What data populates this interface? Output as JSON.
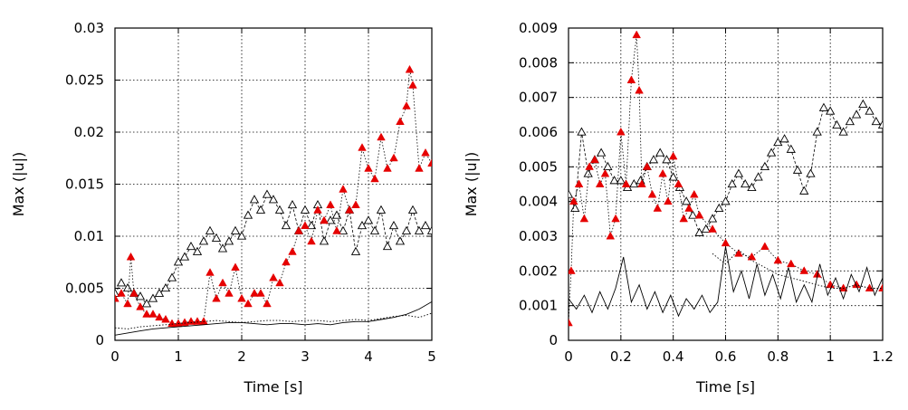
{
  "chart_data": [
    {
      "type": "line",
      "xlabel": "Time [s]",
      "ylabel": "Max (|u|)",
      "xlim": [
        0,
        5
      ],
      "ylim": [
        0,
        0.03
      ],
      "x_ticks": [
        0,
        1,
        2,
        3,
        4,
        5
      ],
      "x_tick_labels": [
        "0",
        "1",
        "2",
        "3",
        "4",
        "5"
      ],
      "y_ticks": [
        0,
        0.005,
        0.01,
        0.015,
        0.02,
        0.025,
        0.03
      ],
      "y_tick_labels": [
        "0",
        "0.005",
        "0.01",
        "0.015",
        "0.02",
        "0.025",
        "0.03"
      ],
      "grid": true,
      "series": [
        {
          "style": "open-triangle-dashed",
          "color": "#000000",
          "x": [
            0,
            0.1,
            0.2,
            0.3,
            0.4,
            0.5,
            0.6,
            0.7,
            0.8,
            0.9,
            1.0,
            1.1,
            1.2,
            1.3,
            1.4,
            1.5,
            1.6,
            1.7,
            1.8,
            1.9,
            2.0,
            2.1,
            2.2,
            2.3,
            2.4,
            2.5,
            2.6,
            2.7,
            2.8,
            2.9,
            3.0,
            3.1,
            3.2,
            3.3,
            3.4,
            3.5,
            3.6,
            3.7,
            3.8,
            3.9,
            4.0,
            4.1,
            4.2,
            4.3,
            4.4,
            4.5,
            4.6,
            4.7,
            4.8,
            4.9,
            5.0
          ],
          "y": [
            0.0045,
            0.0055,
            0.005,
            0.0045,
            0.0042,
            0.0035,
            0.004,
            0.0045,
            0.005,
            0.006,
            0.0075,
            0.008,
            0.009,
            0.0085,
            0.0095,
            0.0105,
            0.0098,
            0.0088,
            0.0095,
            0.0105,
            0.01,
            0.012,
            0.0135,
            0.0125,
            0.014,
            0.0135,
            0.0125,
            0.011,
            0.013,
            0.0105,
            0.0125,
            0.011,
            0.013,
            0.0095,
            0.0115,
            0.012,
            0.0105,
            0.0125,
            0.0085,
            0.011,
            0.0115,
            0.0105,
            0.0125,
            0.009,
            0.011,
            0.0095,
            0.0105,
            0.0125,
            0.0105,
            0.011,
            0.0105
          ]
        },
        {
          "style": "filled-triangle-dotted",
          "color": "#e60000",
          "x": [
            0,
            0.1,
            0.2,
            0.25,
            0.3,
            0.4,
            0.5,
            0.6,
            0.7,
            0.8,
            0.9,
            1.0,
            1.1,
            1.2,
            1.3,
            1.4,
            1.5,
            1.6,
            1.7,
            1.8,
            1.9,
            2.0,
            2.1,
            2.2,
            2.3,
            2.4,
            2.5,
            2.6,
            2.7,
            2.8,
            2.9,
            3.0,
            3.1,
            3.2,
            3.3,
            3.4,
            3.5,
            3.6,
            3.7,
            3.8,
            3.9,
            4.0,
            4.1,
            4.2,
            4.3,
            4.4,
            4.5,
            4.6,
            4.65,
            4.7,
            4.8,
            4.9,
            5.0
          ],
          "y": [
            0.004,
            0.0045,
            0.0035,
            0.008,
            0.0045,
            0.0032,
            0.0025,
            0.0025,
            0.0022,
            0.002,
            0.0016,
            0.0016,
            0.0017,
            0.0018,
            0.0018,
            0.0018,
            0.0065,
            0.004,
            0.0055,
            0.0045,
            0.007,
            0.004,
            0.0035,
            0.0045,
            0.0045,
            0.0035,
            0.006,
            0.0055,
            0.0075,
            0.0085,
            0.0105,
            0.011,
            0.0095,
            0.0125,
            0.0115,
            0.013,
            0.0105,
            0.0145,
            0.0125,
            0.013,
            0.0185,
            0.0165,
            0.0155,
            0.0195,
            0.0165,
            0.0175,
            0.021,
            0.0225,
            0.026,
            0.0245,
            0.0165,
            0.018,
            0.017
          ]
        },
        {
          "style": "solid-thin",
          "color": "#000000",
          "x": [
            0,
            0.2,
            0.4,
            0.6,
            0.8,
            1.0,
            1.2,
            1.4,
            1.6,
            1.8,
            2.0,
            2.2,
            2.4,
            2.6,
            2.8,
            3.0,
            3.2,
            3.4,
            3.6,
            3.8,
            4.0,
            4.2,
            4.4,
            4.6,
            4.8,
            5.0
          ],
          "y": [
            0.0005,
            0.0007,
            0.0009,
            0.0011,
            0.0012,
            0.0013,
            0.0014,
            0.0015,
            0.0016,
            0.0017,
            0.0017,
            0.0016,
            0.0015,
            0.0016,
            0.0016,
            0.0015,
            0.0016,
            0.0015,
            0.0017,
            0.0018,
            0.0018,
            0.002,
            0.0022,
            0.0025,
            0.003,
            0.0037
          ]
        },
        {
          "style": "dotted-thin",
          "color": "#000000",
          "x": [
            0,
            0.2,
            0.4,
            0.6,
            0.8,
            1.0,
            1.2,
            1.4,
            1.6,
            1.8,
            2.0,
            2.2,
            2.4,
            2.6,
            2.8,
            3.0,
            3.2,
            3.4,
            3.6,
            3.8,
            4.0,
            4.2,
            4.4,
            4.6,
            4.8,
            5.0
          ],
          "y": [
            0.0012,
            0.0011,
            0.0013,
            0.0014,
            0.0015,
            0.0016,
            0.0017,
            0.0018,
            0.0019,
            0.0018,
            0.0017,
            0.0018,
            0.0019,
            0.0019,
            0.0018,
            0.0019,
            0.0019,
            0.0018,
            0.0019,
            0.002,
            0.0019,
            0.0021,
            0.0023,
            0.0024,
            0.0022,
            0.0026
          ]
        }
      ]
    },
    {
      "type": "line",
      "xlabel": "Time [s]",
      "ylabel": "Max (|u|)",
      "xlim": [
        0,
        1.2
      ],
      "ylim": [
        0,
        0.009
      ],
      "x_ticks": [
        0,
        0.2,
        0.4,
        0.6,
        0.8,
        1,
        1.2
      ],
      "x_tick_labels": [
        "0",
        "0.2",
        "0.4",
        "0.6",
        "0.8",
        "1",
        "1.2"
      ],
      "y_ticks": [
        0,
        0.001,
        0.002,
        0.003,
        0.004,
        0.005,
        0.006,
        0.007,
        0.008,
        0.009
      ],
      "y_tick_labels": [
        "0",
        "0.001",
        "0.002",
        "0.003",
        "0.004",
        "0.005",
        "0.006",
        "0.007",
        "0.008",
        "0.009"
      ],
      "grid": true,
      "series": [
        {
          "style": "open-triangle-dashed",
          "color": "#000000",
          "x": [
            0,
            0.025,
            0.05,
            0.075,
            0.1,
            0.125,
            0.15,
            0.175,
            0.2,
            0.225,
            0.25,
            0.275,
            0.3,
            0.325,
            0.35,
            0.375,
            0.4,
            0.425,
            0.45,
            0.475,
            0.5,
            0.525,
            0.55,
            0.575,
            0.6,
            0.625,
            0.65,
            0.675,
            0.7,
            0.725,
            0.75,
            0.775,
            0.8,
            0.825,
            0.85,
            0.875,
            0.9,
            0.925,
            0.95,
            0.975,
            1.0,
            1.025,
            1.05,
            1.075,
            1.1,
            1.125,
            1.15,
            1.175,
            1.2
          ],
          "y": [
            0.0042,
            0.0038,
            0.006,
            0.0048,
            0.0052,
            0.0054,
            0.005,
            0.0046,
            0.0046,
            0.0044,
            0.0045,
            0.0046,
            0.005,
            0.0052,
            0.0054,
            0.0052,
            0.0047,
            0.0044,
            0.004,
            0.0036,
            0.0031,
            0.0032,
            0.0035,
            0.0038,
            0.004,
            0.0045,
            0.0048,
            0.0045,
            0.0044,
            0.0047,
            0.005,
            0.0054,
            0.0057,
            0.0058,
            0.0055,
            0.0049,
            0.0043,
            0.0048,
            0.006,
            0.0067,
            0.0066,
            0.0062,
            0.006,
            0.0063,
            0.0065,
            0.0068,
            0.0066,
            0.0063,
            0.0062
          ]
        },
        {
          "style": "filled-triangle-dotted",
          "color": "#e60000",
          "x": [
            0,
            0.01,
            0.02,
            0.04,
            0.06,
            0.08,
            0.1,
            0.12,
            0.14,
            0.16,
            0.18,
            0.2,
            0.22,
            0.24,
            0.26,
            0.27,
            0.28,
            0.3,
            0.32,
            0.34,
            0.36,
            0.38,
            0.4,
            0.42,
            0.44,
            0.46,
            0.48,
            0.5,
            0.55,
            0.6,
            0.65,
            0.7,
            0.75,
            0.8,
            0.85,
            0.9,
            0.95,
            1.0,
            1.05,
            1.1,
            1.15,
            1.2
          ],
          "y": [
            0.0005,
            0.002,
            0.004,
            0.0045,
            0.0035,
            0.005,
            0.0052,
            0.0045,
            0.0048,
            0.003,
            0.0035,
            0.006,
            0.0045,
            0.0075,
            0.0088,
            0.0072,
            0.0045,
            0.005,
            0.0042,
            0.0038,
            0.0048,
            0.004,
            0.0053,
            0.0045,
            0.0035,
            0.0038,
            0.0042,
            0.0036,
            0.0032,
            0.0028,
            0.0025,
            0.0024,
            0.0027,
            0.0023,
            0.0022,
            0.002,
            0.0019,
            0.0016,
            0.0015,
            0.0016,
            0.0015,
            0.0015
          ]
        },
        {
          "style": "solid-thin",
          "color": "#000000",
          "x": [
            0,
            0.03,
            0.06,
            0.09,
            0.12,
            0.15,
            0.18,
            0.21,
            0.24,
            0.27,
            0.3,
            0.33,
            0.36,
            0.39,
            0.42,
            0.45,
            0.48,
            0.51,
            0.54,
            0.57,
            0.6,
            0.63,
            0.66,
            0.69,
            0.72,
            0.75,
            0.78,
            0.81,
            0.84,
            0.87,
            0.9,
            0.93,
            0.96,
            0.99,
            1.02,
            1.05,
            1.08,
            1.11,
            1.14,
            1.17,
            1.2
          ],
          "y": [
            0.0012,
            0.0009,
            0.0013,
            0.0008,
            0.0014,
            0.0009,
            0.0015,
            0.0024,
            0.0011,
            0.0016,
            0.0009,
            0.0014,
            0.0008,
            0.0013,
            0.0007,
            0.0012,
            0.0009,
            0.0013,
            0.0008,
            0.0011,
            0.0027,
            0.0014,
            0.002,
            0.0012,
            0.0022,
            0.0013,
            0.0019,
            0.0012,
            0.0021,
            0.0011,
            0.0016,
            0.0011,
            0.0022,
            0.0013,
            0.0018,
            0.0012,
            0.0019,
            0.0014,
            0.0021,
            0.0013,
            0.0018
          ]
        },
        {
          "style": "dotted-thin",
          "color": "#000000",
          "x": [
            0.55,
            0.6,
            0.65,
            0.7,
            0.75,
            0.8,
            0.85,
            0.9,
            0.95,
            1.0,
            1.05,
            1.1,
            1.15,
            1.2
          ],
          "y": [
            0.0025,
            0.0022,
            0.0026,
            0.0023,
            0.0021,
            0.0019,
            0.0018,
            0.0017,
            0.0016,
            0.0015,
            0.0015,
            0.0016,
            0.0015,
            0.0015
          ]
        }
      ]
    }
  ]
}
